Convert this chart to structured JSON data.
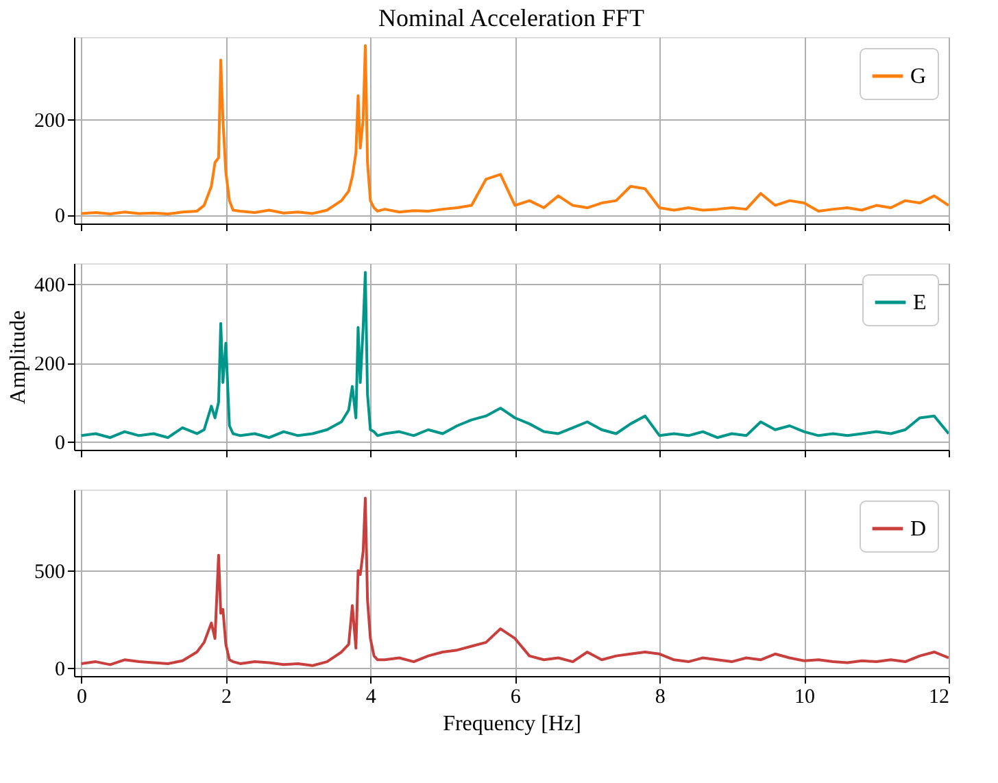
{
  "chart_data": [
    {
      "type": "line",
      "title": "Nominal Acceleration FFT",
      "legend": "top right",
      "grid": true,
      "tick_labels": "y",
      "xlim": [
        -0.1,
        12
      ],
      "xticks": [
        0,
        2,
        4,
        6,
        8,
        10,
        12
      ],
      "ylim": [
        -18,
        373
      ],
      "yticks": [
        0,
        200
      ],
      "x": [
        0,
        0.2,
        0.4,
        0.6,
        0.8,
        1.0,
        1.2,
        1.4,
        1.6,
        1.7,
        1.8,
        1.85,
        1.9,
        1.93,
        1.96,
        2.0,
        2.05,
        2.1,
        2.2,
        2.4,
        2.6,
        2.8,
        3.0,
        3.2,
        3.4,
        3.6,
        3.7,
        3.75,
        3.8,
        3.83,
        3.86,
        3.9,
        3.93,
        3.96,
        4.0,
        4.05,
        4.1,
        4.2,
        4.4,
        4.6,
        4.8,
        5.0,
        5.2,
        5.4,
        5.6,
        5.8,
        6.0,
        6.2,
        6.4,
        6.6,
        6.8,
        7.0,
        7.2,
        7.4,
        7.6,
        7.8,
        8.0,
        8.2,
        8.4,
        8.6,
        8.8,
        9.0,
        9.2,
        9.4,
        9.6,
        9.8,
        10.0,
        10.2,
        10.4,
        10.6,
        10.8,
        11.0,
        11.2,
        11.4,
        11.6,
        11.8,
        12.0
      ],
      "series": [
        {
          "name": "G",
          "color": "#ff7f0e",
          "values": [
            3,
            5,
            2,
            6,
            3,
            4,
            2,
            6,
            8,
            20,
            60,
            110,
            120,
            325,
            200,
            90,
            30,
            10,
            8,
            5,
            10,
            4,
            6,
            3,
            10,
            30,
            50,
            80,
            130,
            250,
            140,
            200,
            355,
            110,
            30,
            15,
            8,
            12,
            6,
            9,
            8,
            12,
            15,
            20,
            75,
            85,
            20,
            30,
            15,
            40,
            20,
            15,
            25,
            30,
            60,
            55,
            15,
            10,
            15,
            10,
            12,
            15,
            12,
            45,
            20,
            30,
            25,
            8,
            12,
            15,
            10,
            20,
            15,
            30,
            25,
            40,
            20
          ]
        }
      ]
    },
    {
      "type": "line",
      "ylabel": "Amplitude",
      "legend": "top right",
      "grid": true,
      "tick_labels": "y",
      "xlim": [
        -0.1,
        12
      ],
      "xticks": [
        0,
        2,
        4,
        6,
        8,
        10,
        12
      ],
      "ylim": [
        -21,
        453
      ],
      "yticks": [
        0,
        200,
        400
      ],
      "x": [
        0,
        0.2,
        0.4,
        0.6,
        0.8,
        1.0,
        1.2,
        1.4,
        1.6,
        1.7,
        1.8,
        1.85,
        1.9,
        1.93,
        1.96,
        2.0,
        2.05,
        2.1,
        2.2,
        2.4,
        2.6,
        2.8,
        3.0,
        3.2,
        3.4,
        3.6,
        3.7,
        3.75,
        3.8,
        3.83,
        3.86,
        3.9,
        3.93,
        3.96,
        4.0,
        4.05,
        4.1,
        4.2,
        4.4,
        4.6,
        4.8,
        5.0,
        5.2,
        5.4,
        5.6,
        5.8,
        6.0,
        6.2,
        6.4,
        6.6,
        6.8,
        7.0,
        7.2,
        7.4,
        7.6,
        7.8,
        8.0,
        8.2,
        8.4,
        8.6,
        8.8,
        9.0,
        9.2,
        9.4,
        9.6,
        9.8,
        10.0,
        10.2,
        10.4,
        10.6,
        10.8,
        11.0,
        11.2,
        11.4,
        11.6,
        11.8,
        12.0
      ],
      "series": [
        {
          "name": "E",
          "color": "#00968a",
          "values": [
            15,
            20,
            10,
            25,
            15,
            20,
            10,
            35,
            20,
            30,
            90,
            60,
            100,
            300,
            150,
            250,
            40,
            20,
            15,
            20,
            10,
            25,
            15,
            20,
            30,
            50,
            80,
            140,
            60,
            290,
            150,
            290,
            430,
            120,
            30,
            25,
            15,
            20,
            25,
            15,
            30,
            20,
            40,
            55,
            65,
            85,
            60,
            45,
            25,
            20,
            35,
            50,
            30,
            20,
            45,
            65,
            15,
            20,
            15,
            25,
            10,
            20,
            15,
            50,
            30,
            40,
            25,
            15,
            20,
            15,
            20,
            25,
            20,
            30,
            60,
            65,
            20
          ]
        }
      ]
    },
    {
      "type": "line",
      "xlabel": "Frequency [Hz]",
      "legend": "top right",
      "grid": true,
      "xlim": [
        -0.1,
        12
      ],
      "xticks": [
        0,
        2,
        4,
        6,
        8,
        10,
        12
      ],
      "ylim": [
        -44,
        919
      ],
      "yticks": [
        0,
        500
      ],
      "x": [
        0,
        0.2,
        0.4,
        0.6,
        0.8,
        1.0,
        1.2,
        1.4,
        1.6,
        1.7,
        1.8,
        1.85,
        1.9,
        1.93,
        1.96,
        2.0,
        2.05,
        2.1,
        2.2,
        2.4,
        2.6,
        2.8,
        3.0,
        3.2,
        3.4,
        3.6,
        3.7,
        3.75,
        3.8,
        3.83,
        3.86,
        3.9,
        3.93,
        3.96,
        4.0,
        4.05,
        4.1,
        4.2,
        4.4,
        4.6,
        4.8,
        5.0,
        5.2,
        5.4,
        5.6,
        5.8,
        6.0,
        6.2,
        6.4,
        6.6,
        6.8,
        7.0,
        7.2,
        7.4,
        7.6,
        7.8,
        8.0,
        8.2,
        8.4,
        8.6,
        8.8,
        9.0,
        9.2,
        9.4,
        9.6,
        9.8,
        10.0,
        10.2,
        10.4,
        10.6,
        10.8,
        11.0,
        11.2,
        11.4,
        11.6,
        11.8,
        12.0
      ],
      "series": [
        {
          "name": "D",
          "color": "#c8403e",
          "values": [
            20,
            30,
            15,
            40,
            30,
            25,
            20,
            35,
            80,
            130,
            230,
            150,
            580,
            280,
            300,
            120,
            40,
            30,
            20,
            30,
            25,
            15,
            20,
            10,
            30,
            80,
            120,
            320,
            100,
            500,
            480,
            600,
            875,
            350,
            150,
            60,
            40,
            40,
            50,
            30,
            60,
            80,
            90,
            110,
            130,
            200,
            150,
            60,
            40,
            50,
            30,
            80,
            40,
            60,
            70,
            80,
            70,
            40,
            30,
            50,
            40,
            30,
            50,
            40,
            70,
            50,
            35,
            40,
            30,
            25,
            35,
            30,
            40,
            30,
            60,
            80,
            50
          ]
        }
      ]
    }
  ]
}
